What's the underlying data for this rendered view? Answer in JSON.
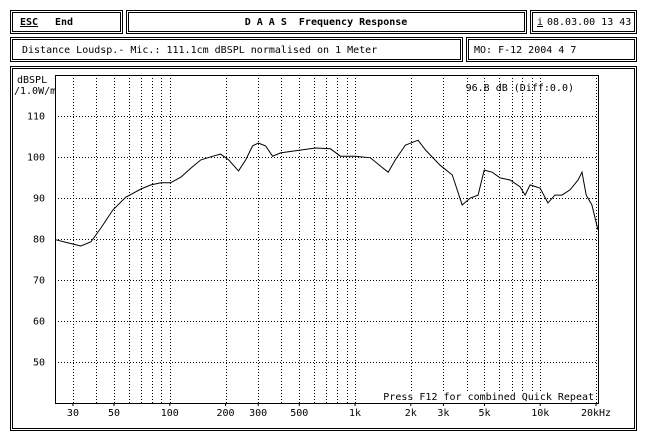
{
  "header": {
    "esc": "ESC",
    "end": "End",
    "title": "D A A S  Frequency Response",
    "info_key": "i",
    "datetime": "08.03.00 13 43"
  },
  "info": {
    "description": "Distance Loudsp.- Mic.: 111.1cm dBSPL normalised on 1 Meter",
    "model": "MO: F-12 2004 4 7"
  },
  "chart_data": {
    "type": "line",
    "ylabel": "dBSPL",
    "ylabel2": "/1.0W/m",
    "annotation": "96.8 dB (Diff:0.0)",
    "footer": "Press F12 for combined Quick Repeat",
    "log_x": true,
    "grid": true,
    "color": "#000000",
    "xlim": [
      24,
      20500
    ],
    "ylim": [
      40,
      120
    ],
    "xticks": [
      30,
      50,
      100,
      200,
      300,
      500,
      {
        "value": 1000,
        "label": "1k"
      },
      {
        "value": 2000,
        "label": "2k"
      },
      {
        "value": 3000,
        "label": "3k"
      },
      {
        "value": 5000,
        "label": "5k"
      },
      {
        "value": 10000,
        "label": "10k"
      },
      {
        "value": 20000,
        "label": "20kHz"
      }
    ],
    "xgrid": [
      30,
      40,
      50,
      60,
      70,
      80,
      90,
      100,
      200,
      300,
      400,
      500,
      600,
      700,
      800,
      900,
      1000,
      2000,
      3000,
      4000,
      5000,
      6000,
      7000,
      8000,
      9000,
      10000,
      20000
    ],
    "yticks": [
      50,
      60,
      70,
      80,
      90,
      100,
      110
    ],
    "x": [
      24.3,
      28.6,
      33.1,
      37.5,
      42.5,
      49.3,
      57.9,
      69.8,
      79.1,
      89.5,
      101,
      115,
      130,
      147,
      171,
      188,
      208,
      235,
      257,
      280,
      301,
      329,
      359,
      396,
      477,
      612,
      737,
      834,
      1000,
      1210,
      1370,
      1510,
      1650,
      1870,
      2190,
      2400,
      2880,
      3350,
      3790,
      4190,
      4620,
      4980,
      5500,
      6070,
      6870,
      7780,
      8280,
      8810,
      9980,
      11000,
      12000,
      13100,
      14500,
      16000,
      16800,
      17700,
      19000,
      20500
    ],
    "values": [
      79.8,
      79.0,
      78.3,
      79.3,
      82.7,
      87.1,
      90.2,
      92.2,
      93.2,
      93.7,
      93.7,
      95.1,
      97.3,
      99.3,
      100.2,
      100.7,
      99.3,
      96.6,
      99.3,
      102.7,
      103.4,
      102.7,
      100.2,
      101.0,
      101.5,
      102.2,
      102.0,
      100.2,
      100.2,
      99.8,
      97.8,
      96.3,
      99.3,
      102.9,
      104.1,
      101.7,
      98.0,
      95.6,
      88.3,
      90.0,
      90.7,
      96.8,
      96.3,
      94.9,
      94.4,
      92.7,
      90.7,
      93.2,
      92.4,
      88.8,
      90.7,
      90.7,
      92.0,
      94.4,
      96.3,
      90.7,
      88.3,
      82.2
    ]
  }
}
